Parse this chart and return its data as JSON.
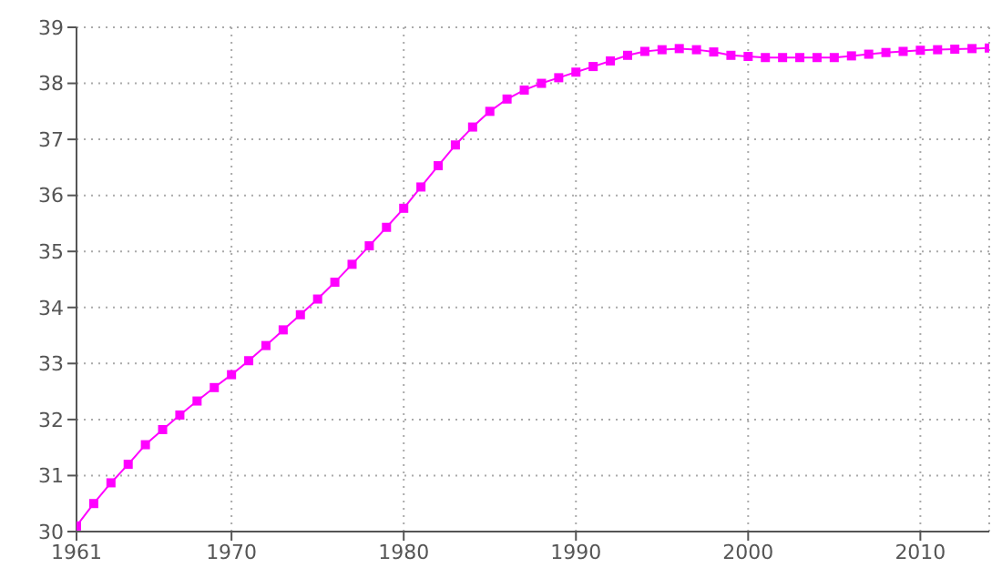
{
  "chart_data": {
    "type": "line",
    "x": [
      1961,
      1962,
      1963,
      1964,
      1965,
      1966,
      1967,
      1968,
      1969,
      1970,
      1971,
      1972,
      1973,
      1974,
      1975,
      1976,
      1977,
      1978,
      1979,
      1980,
      1981,
      1982,
      1983,
      1984,
      1985,
      1986,
      1987,
      1988,
      1989,
      1990,
      1991,
      1992,
      1993,
      1994,
      1995,
      1996,
      1997,
      1998,
      1999,
      2000,
      2001,
      2002,
      2003,
      2004,
      2005,
      2006,
      2007,
      2008,
      2009,
      2010,
      2011,
      2012,
      2013,
      2014
    ],
    "series": [
      {
        "color": "#ff00ff",
        "values": [
          30.1,
          30.5,
          30.87,
          31.2,
          31.55,
          31.82,
          32.08,
          32.33,
          32.57,
          32.8,
          33.05,
          33.32,
          33.6,
          33.87,
          34.15,
          34.45,
          34.77,
          35.1,
          35.43,
          35.77,
          36.15,
          36.53,
          36.9,
          37.22,
          37.5,
          37.72,
          37.88,
          38.0,
          38.1,
          38.2,
          38.3,
          38.4,
          38.5,
          38.57,
          38.6,
          38.62,
          38.6,
          38.56,
          38.5,
          38.48,
          38.46,
          38.46,
          38.46,
          38.46,
          38.46,
          38.49,
          38.52,
          38.55,
          38.57,
          38.59,
          38.6,
          38.61,
          38.62,
          38.63
        ]
      }
    ],
    "xlim": [
      1961,
      2014
    ],
    "xticks": [
      1961,
      1970,
      1980,
      1990,
      2000,
      2010
    ],
    "ylim": [
      30,
      39
    ],
    "yticks": [
      30,
      31,
      32,
      33,
      34,
      35,
      36,
      37,
      38,
      39
    ],
    "grid": true,
    "marker": "square",
    "line_style": "solid"
  }
}
